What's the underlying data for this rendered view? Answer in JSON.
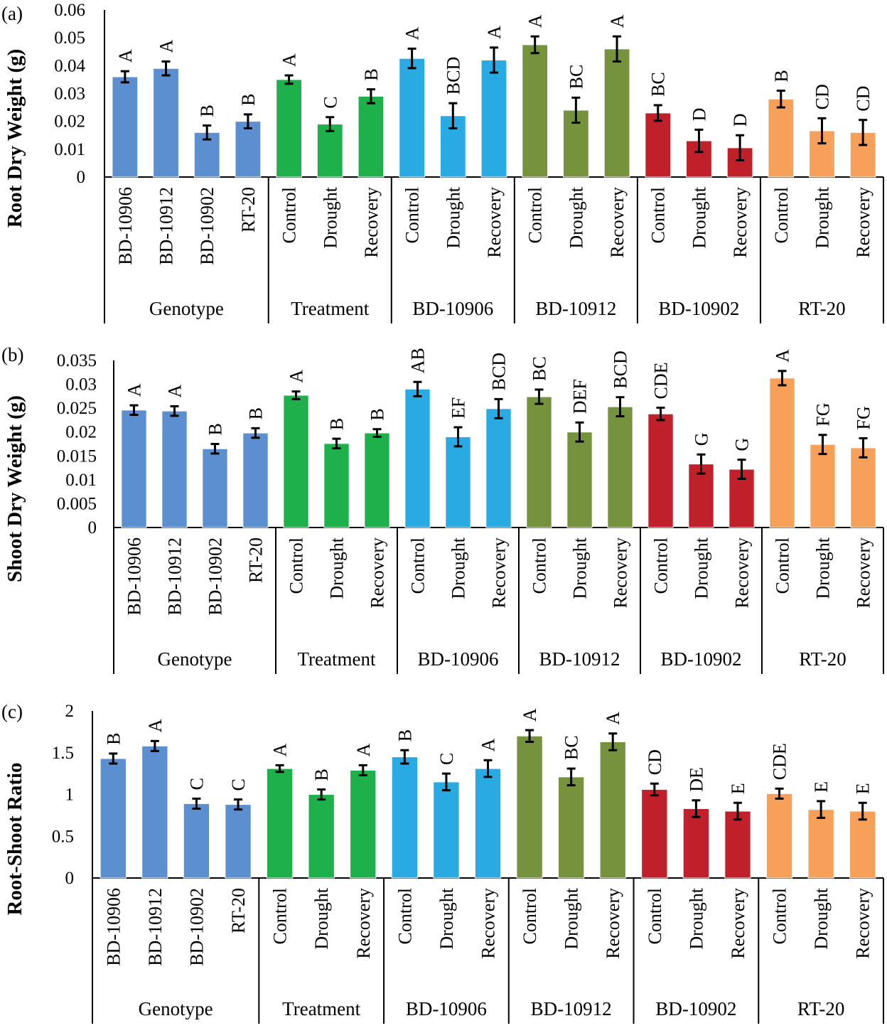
{
  "colors": {
    "genotype": "#5b8fcf",
    "treatment": "#1db04b",
    "BD-10906": "#2aaae2",
    "BD-10912": "#76923c",
    "BD-10902": "#c0202a",
    "RT-20": "#f6a059"
  },
  "chart_data": [
    {
      "type": "bar",
      "panel_label": "(a)",
      "ylabel": "Root Dry Weight  (g)",
      "ylim": [
        0,
        0.06
      ],
      "yticks": [
        "0",
        "0.01",
        "0.02",
        "0.03",
        "0.04",
        "0.05",
        "0.06"
      ],
      "ytick_values": [
        0,
        0.01,
        0.02,
        0.03,
        0.04,
        0.05,
        0.06
      ],
      "groups": [
        {
          "name": "Genotype",
          "color_key": "genotype",
          "categories": [
            "BD-10906",
            "BD-10912",
            "BD-10902",
            "RT-20"
          ],
          "values": [
            0.036,
            0.039,
            0.016,
            0.02
          ],
          "errors": [
            0.002,
            0.0025,
            0.0025,
            0.0025
          ],
          "letters": [
            "A",
            "A",
            "B",
            "B"
          ]
        },
        {
          "name": "Treatment",
          "color_key": "treatment",
          "categories": [
            "Control",
            "Drought",
            "Recovery"
          ],
          "values": [
            0.035,
            0.019,
            0.029
          ],
          "errors": [
            0.0015,
            0.0025,
            0.0025
          ],
          "letters": [
            "A",
            "C",
            "B"
          ]
        },
        {
          "name": "BD-10906",
          "color_key": "BD-10906",
          "categories": [
            "Control",
            "Drought",
            "Recovery"
          ],
          "values": [
            0.0426,
            0.022,
            0.042
          ],
          "errors": [
            0.0035,
            0.0045,
            0.0045
          ],
          "letters": [
            "A",
            "BCD",
            "A"
          ]
        },
        {
          "name": "BD-10912",
          "color_key": "BD-10912",
          "categories": [
            "Control",
            "Drought",
            "Recovery"
          ],
          "values": [
            0.0475,
            0.024,
            0.046
          ],
          "errors": [
            0.003,
            0.0045,
            0.0045
          ],
          "letters": [
            "A",
            "BC",
            "A"
          ]
        },
        {
          "name": "BD-10902",
          "color_key": "BD-10902",
          "categories": [
            "Control",
            "Drought",
            "Recovery"
          ],
          "values": [
            0.023,
            0.013,
            0.0105
          ],
          "errors": [
            0.0028,
            0.004,
            0.0045
          ],
          "letters": [
            "BC",
            "D",
            "D"
          ]
        },
        {
          "name": "RT-20",
          "color_key": "RT-20",
          "categories": [
            "Control",
            "Drought",
            "Recovery"
          ],
          "values": [
            0.028,
            0.0166,
            0.016
          ],
          "errors": [
            0.003,
            0.0045,
            0.0045
          ],
          "letters": [
            "B",
            "CD",
            "CD"
          ]
        }
      ]
    },
    {
      "type": "bar",
      "panel_label": "(b)",
      "ylabel": "Shoot Dry Weight (g)",
      "ylim": [
        0,
        0.035
      ],
      "yticks": [
        "0",
        "0.005",
        "0.01",
        "0.015",
        "0.02",
        "0.025",
        "0.03",
        "0.035"
      ],
      "ytick_values": [
        0,
        0.005,
        0.01,
        0.015,
        0.02,
        0.025,
        0.03,
        0.035
      ],
      "groups": [
        {
          "name": "Genotype",
          "color_key": "genotype",
          "categories": [
            "BD-10906",
            "BD-10912",
            "BD-10902",
            "RT-20"
          ],
          "values": [
            0.0246,
            0.0244,
            0.0165,
            0.0198
          ],
          "errors": [
            0.001,
            0.001,
            0.001,
            0.001
          ],
          "letters": [
            "A",
            "A",
            "B",
            "B"
          ]
        },
        {
          "name": "Treatment",
          "color_key": "treatment",
          "categories": [
            "Control",
            "Drought",
            "Recovery"
          ],
          "values": [
            0.0277,
            0.0176,
            0.0198
          ],
          "errors": [
            0.0008,
            0.001,
            0.0008
          ],
          "letters": [
            "A",
            "B",
            "B"
          ]
        },
        {
          "name": "BD-10906",
          "color_key": "BD-10906",
          "categories": [
            "Control",
            "Drought",
            "Recovery"
          ],
          "values": [
            0.029,
            0.019,
            0.0249
          ],
          "errors": [
            0.0015,
            0.002,
            0.002
          ],
          "letters": [
            "AB",
            "EF",
            "BCD"
          ]
        },
        {
          "name": "BD-10912",
          "color_key": "BD-10912",
          "categories": [
            "Control",
            "Drought",
            "Recovery"
          ],
          "values": [
            0.0274,
            0.02,
            0.0253
          ],
          "errors": [
            0.0015,
            0.002,
            0.002
          ],
          "letters": [
            "BC",
            "DEF",
            "BCD"
          ]
        },
        {
          "name": "BD-10902",
          "color_key": "BD-10902",
          "categories": [
            "Control",
            "Drought",
            "Recovery"
          ],
          "values": [
            0.0238,
            0.0133,
            0.0122
          ],
          "errors": [
            0.0013,
            0.002,
            0.002
          ],
          "letters": [
            "CDE",
            "G",
            "G"
          ]
        },
        {
          "name": "RT-20",
          "color_key": "RT-20",
          "categories": [
            "Control",
            "Drought",
            "Recovery"
          ],
          "values": [
            0.0313,
            0.0174,
            0.0167
          ],
          "errors": [
            0.0015,
            0.002,
            0.002
          ],
          "letters": [
            "A",
            "FG",
            "FG"
          ]
        }
      ]
    },
    {
      "type": "bar",
      "panel_label": "(c)",
      "ylabel": "Root-Shoot Ratio",
      "ylim": [
        0,
        2
      ],
      "yticks": [
        "0",
        "0.5",
        "1",
        "1.5",
        "2"
      ],
      "ytick_values": [
        0,
        0.5,
        1,
        1.5,
        2
      ],
      "groups": [
        {
          "name": "Genotype",
          "color_key": "genotype",
          "categories": [
            "BD-10906",
            "BD-10912",
            "BD-10902",
            "RT-20"
          ],
          "values": [
            1.43,
            1.58,
            0.89,
            0.88
          ],
          "errors": [
            0.06,
            0.06,
            0.06,
            0.06
          ],
          "letters": [
            "B",
            "A",
            "C",
            "C"
          ]
        },
        {
          "name": "Treatment",
          "color_key": "treatment",
          "categories": [
            "Control",
            "Drought",
            "Recovery"
          ],
          "values": [
            1.31,
            1.0,
            1.29
          ],
          "errors": [
            0.04,
            0.06,
            0.06
          ],
          "letters": [
            "A",
            "B",
            "A"
          ]
        },
        {
          "name": "BD-10906",
          "color_key": "BD-10906",
          "categories": [
            "Control",
            "Drought",
            "Recovery"
          ],
          "values": [
            1.45,
            1.15,
            1.31
          ],
          "errors": [
            0.08,
            0.1,
            0.1
          ],
          "letters": [
            "B",
            "C",
            "A"
          ]
        },
        {
          "name": "BD-10912",
          "color_key": "BD-10912",
          "categories": [
            "Control",
            "Drought",
            "Recovery"
          ],
          "values": [
            1.7,
            1.21,
            1.63
          ],
          "errors": [
            0.07,
            0.1,
            0.1
          ],
          "letters": [
            "A",
            "BC",
            "A"
          ]
        },
        {
          "name": "BD-10902",
          "color_key": "BD-10902",
          "categories": [
            "Control",
            "Drought",
            "Recovery"
          ],
          "values": [
            1.06,
            0.83,
            0.8
          ],
          "errors": [
            0.07,
            0.1,
            0.1
          ],
          "letters": [
            "CD",
            "DE",
            "E"
          ]
        },
        {
          "name": "RT-20",
          "color_key": "RT-20",
          "categories": [
            "Control",
            "Drought",
            "Recovery"
          ],
          "values": [
            1.01,
            0.82,
            0.8
          ],
          "errors": [
            0.06,
            0.1,
            0.1
          ],
          "letters": [
            "CDE",
            "E",
            "E"
          ]
        }
      ]
    }
  ]
}
